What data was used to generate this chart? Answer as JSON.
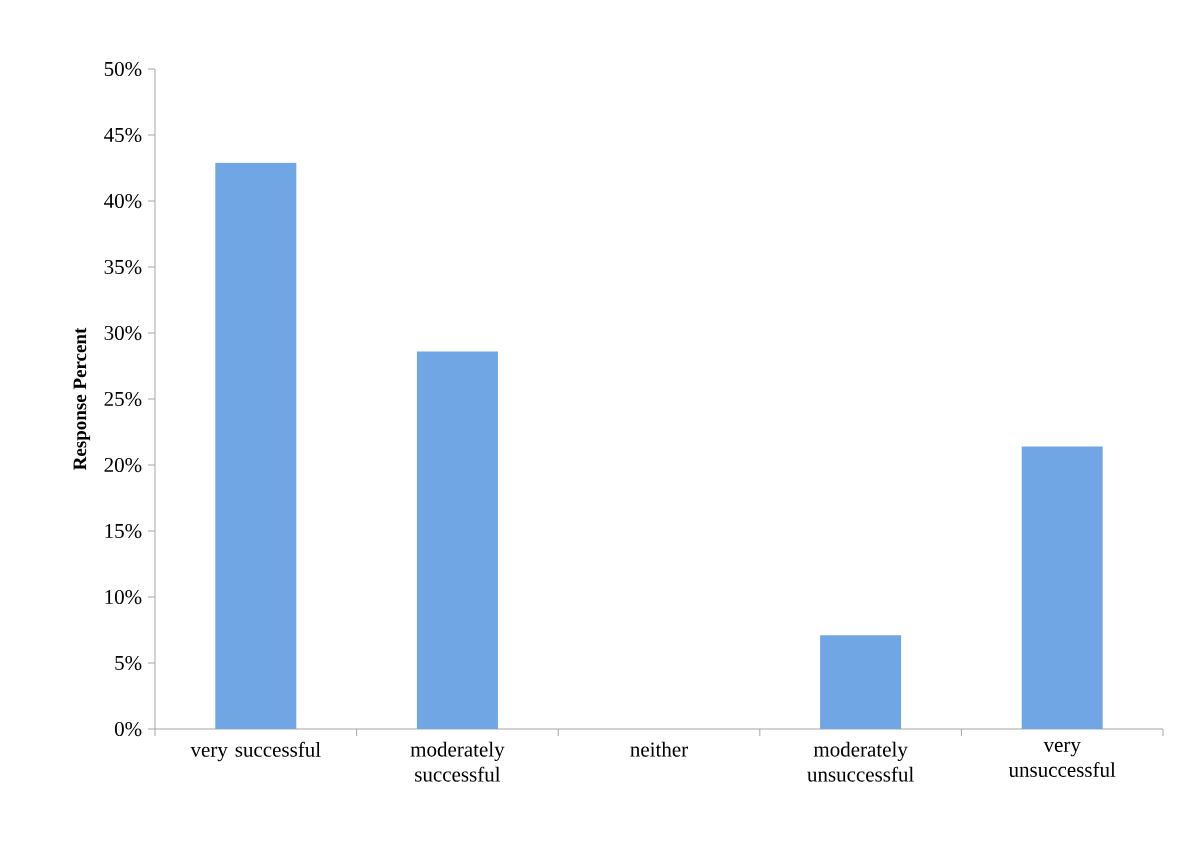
{
  "chart_data": {
    "type": "bar",
    "ylabel": "**Response Percent**",
    "categories": [
      "very successful",
      "moderately successful",
      "neither",
      "moderately unsuccessful",
      "very unsuccessful"
    ],
    "values": [
      42.9,
      28.6,
      0,
      7.1,
      21.4
    ],
    "color": "#6fa6e3",
    "ylim": [
      0,
      50
    ],
    "yticks": [
      {
        "value": 0,
        "label": "0%"
      },
      {
        "value": 5,
        "label": "5%"
      },
      {
        "value": 10,
        "label": "10%"
      },
      {
        "value": 15,
        "label": "15%"
      },
      {
        "value": 20,
        "label": "20%"
      },
      {
        "value": 25,
        "label": "25%"
      },
      {
        "value": 30,
        "label": "30%"
      },
      {
        "value": 35,
        "label": "35%"
      },
      {
        "value": 40,
        "label": "40%"
      },
      {
        "value": 45,
        "label": "45%"
      },
      {
        "value": 50,
        "label": "50%"
      }
    ],
    "grid": false
  }
}
